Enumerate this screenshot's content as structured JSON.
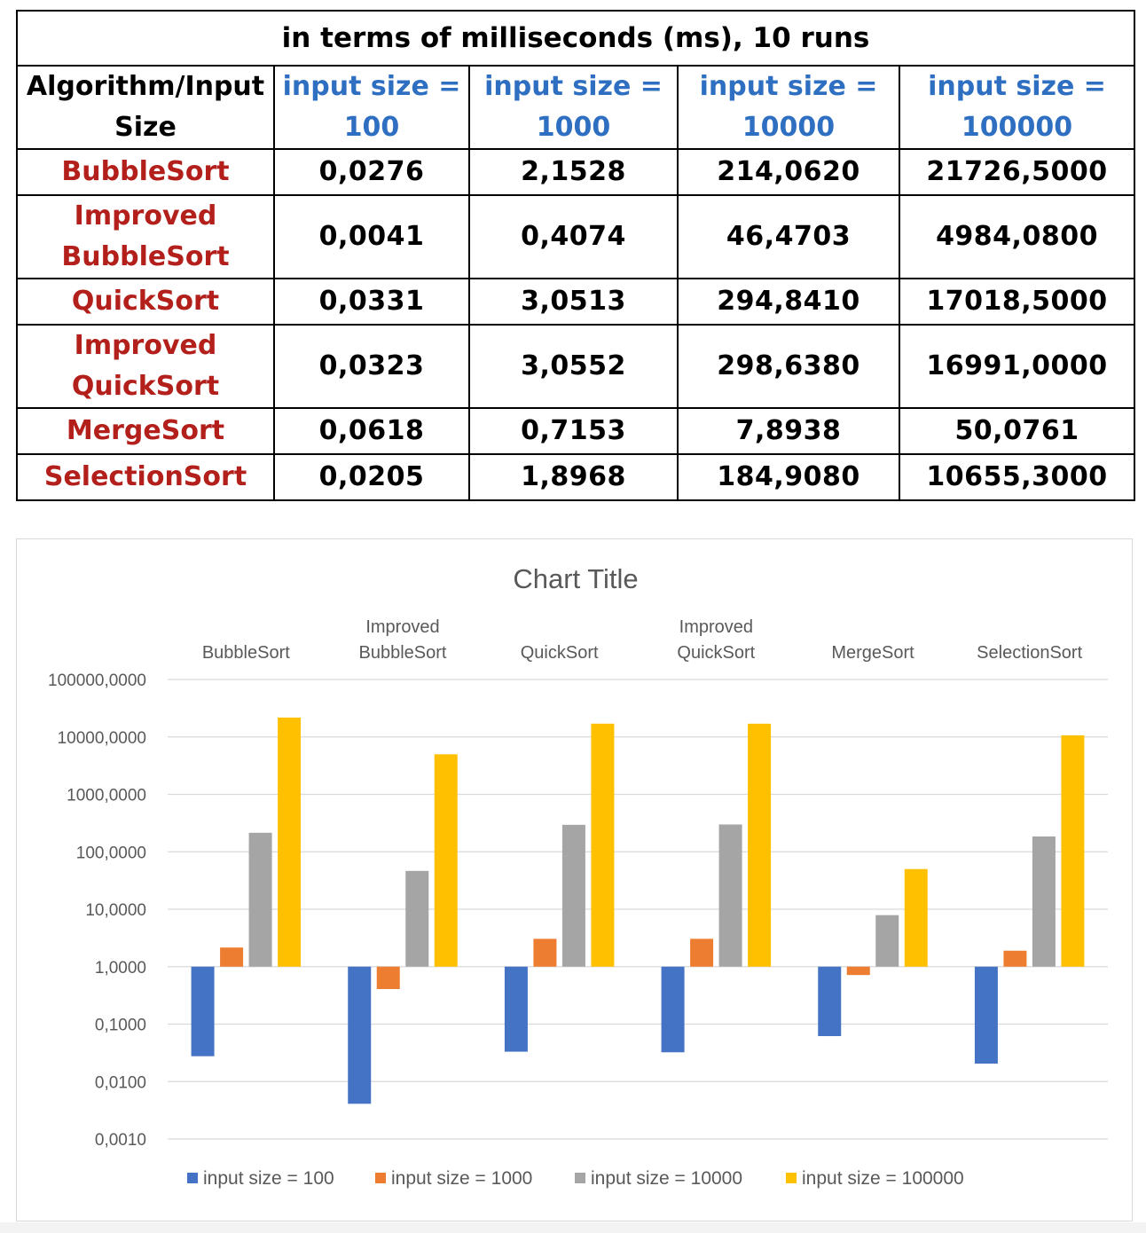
{
  "table": {
    "title": "in terms of milliseconds (ms), 10 runs",
    "header": {
      "first_line1": "Algorithm/Input",
      "first_line2": "Size",
      "sizes": [
        {
          "line1": "input size =",
          "line2": "100"
        },
        {
          "line1": "input size =",
          "line2": "1000"
        },
        {
          "line1": "input size =",
          "line2": "10000"
        },
        {
          "line1": "input size =",
          "line2": "100000"
        }
      ]
    },
    "rows": [
      {
        "name_lines": [
          "BubbleSort"
        ],
        "values": [
          "0,0276",
          "2,1528",
          "214,0620",
          "21726,5000"
        ]
      },
      {
        "name_lines": [
          "Improved",
          "BubbleSort"
        ],
        "values": [
          "0,0041",
          "0,4074",
          "46,4703",
          "4984,0800"
        ]
      },
      {
        "name_lines": [
          "QuickSort"
        ],
        "values": [
          "0,0331",
          "3,0513",
          "294,8410",
          "17018,5000"
        ]
      },
      {
        "name_lines": [
          "Improved",
          "QuickSort"
        ],
        "values": [
          "0,0323",
          "3,0552",
          "298,6380",
          "16991,0000"
        ]
      },
      {
        "name_lines": [
          "MergeSort"
        ],
        "values": [
          "0,0618",
          "0,7153",
          "7,8938",
          "50,0761"
        ]
      },
      {
        "name_lines": [
          "SelectionSort"
        ],
        "values": [
          "0,0205",
          "1,8968",
          "184,9080",
          "10655,3000"
        ]
      }
    ],
    "colors": {
      "header_size": "#2e6fc1",
      "algorithm": "#b3201c"
    }
  },
  "chart_data": {
    "type": "bar",
    "title": "Chart Title",
    "categories": [
      [
        "BubbleSort"
      ],
      [
        "Improved",
        "BubbleSort"
      ],
      [
        "QuickSort"
      ],
      [
        "Improved",
        "QuickSort"
      ],
      [
        "MergeSort"
      ],
      [
        "SelectionSort"
      ]
    ],
    "series": [
      {
        "name": "input size = 100",
        "color": "#4472c4",
        "values": [
          0.0276,
          0.0041,
          0.0331,
          0.0323,
          0.0618,
          0.0205
        ]
      },
      {
        "name": "input size = 1000",
        "color": "#ed7d31",
        "values": [
          2.1528,
          0.4074,
          3.0513,
          3.0552,
          0.7153,
          1.8968
        ]
      },
      {
        "name": "input size = 10000",
        "color": "#a5a5a5",
        "values": [
          214.062,
          46.4703,
          294.841,
          298.638,
          7.8938,
          184.908
        ]
      },
      {
        "name": "input size = 100000",
        "color": "#ffc000",
        "values": [
          21726.5,
          4984.08,
          17018.5,
          16991.0,
          50.0761,
          10655.3
        ]
      }
    ],
    "y_scale": "log10",
    "y_base_value": 1,
    "ylim": [
      0.001,
      100000
    ],
    "y_ticks": [
      "100000,0000",
      "10000,0000",
      "1000,0000",
      "100,0000",
      "10,0000",
      "1,0000",
      "0,1000",
      "0,0100",
      "0,0010"
    ],
    "category_axis_position": "top",
    "legend_position": "bottom",
    "grid": true
  }
}
